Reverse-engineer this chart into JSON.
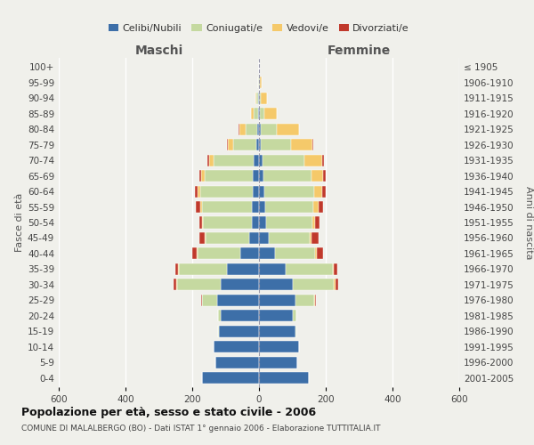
{
  "age_groups": [
    "0-4",
    "5-9",
    "10-14",
    "15-19",
    "20-24",
    "25-29",
    "30-34",
    "35-39",
    "40-44",
    "45-49",
    "50-54",
    "55-59",
    "60-64",
    "65-69",
    "70-74",
    "75-79",
    "80-84",
    "85-89",
    "90-94",
    "95-99",
    "100+"
  ],
  "birth_years": [
    "2001-2005",
    "1996-2000",
    "1991-1995",
    "1986-1990",
    "1981-1985",
    "1976-1980",
    "1971-1975",
    "1966-1970",
    "1961-1965",
    "1956-1960",
    "1951-1955",
    "1946-1950",
    "1941-1945",
    "1936-1940",
    "1931-1935",
    "1926-1930",
    "1921-1925",
    "1916-1920",
    "1911-1915",
    "1906-1910",
    "≤ 1905"
  ],
  "maschi": {
    "celibi": [
      170,
      130,
      135,
      120,
      115,
      125,
      115,
      95,
      55,
      30,
      22,
      22,
      20,
      18,
      15,
      8,
      5,
      3,
      2,
      1,
      0
    ],
    "coniugati": [
      0,
      0,
      0,
      3,
      8,
      45,
      130,
      145,
      130,
      130,
      145,
      150,
      155,
      145,
      120,
      70,
      35,
      12,
      5,
      2,
      0
    ],
    "vedovi": [
      0,
      0,
      0,
      0,
      0,
      2,
      2,
      2,
      2,
      2,
      3,
      5,
      8,
      10,
      15,
      15,
      20,
      8,
      3,
      1,
      0
    ],
    "divorziati": [
      0,
      0,
      0,
      0,
      0,
      2,
      8,
      10,
      12,
      18,
      10,
      12,
      8,
      5,
      5,
      2,
      2,
      1,
      1,
      0,
      0
    ]
  },
  "femmine": {
    "nubili": [
      150,
      115,
      120,
      110,
      100,
      110,
      100,
      80,
      48,
      28,
      20,
      18,
      15,
      12,
      10,
      5,
      4,
      2,
      1,
      1,
      0
    ],
    "coniugate": [
      0,
      0,
      0,
      3,
      12,
      55,
      125,
      140,
      120,
      125,
      140,
      145,
      150,
      145,
      125,
      90,
      50,
      15,
      5,
      2,
      0
    ],
    "vedove": [
      0,
      0,
      0,
      0,
      0,
      2,
      3,
      3,
      5,
      5,
      8,
      15,
      25,
      35,
      55,
      65,
      65,
      35,
      18,
      5,
      0
    ],
    "divorziate": [
      0,
      0,
      0,
      0,
      0,
      3,
      10,
      12,
      20,
      20,
      12,
      15,
      10,
      8,
      5,
      3,
      2,
      2,
      1,
      0,
      0
    ]
  },
  "colors": {
    "celibi": "#3d6fa8",
    "coniugati": "#c5d9a0",
    "vedovi": "#f5c96a",
    "divorziati": "#c0392b"
  },
  "xlim": 600,
  "title": "Popolazione per età, sesso e stato civile - 2006",
  "subtitle": "COMUNE DI MALALBERGO (BO) - Dati ISTAT 1° gennaio 2006 - Elaborazione TUTTITALIA.IT",
  "ylabel_left": "Fasce di età",
  "ylabel_right": "Anni di nascita",
  "xlabel_left": "Maschi",
  "xlabel_right": "Femmine",
  "legend_labels": [
    "Celibi/Nubili",
    "Coniugati/e",
    "Vedovi/e",
    "Divorziati/e"
  ],
  "bg_color": "#f0f0eb"
}
